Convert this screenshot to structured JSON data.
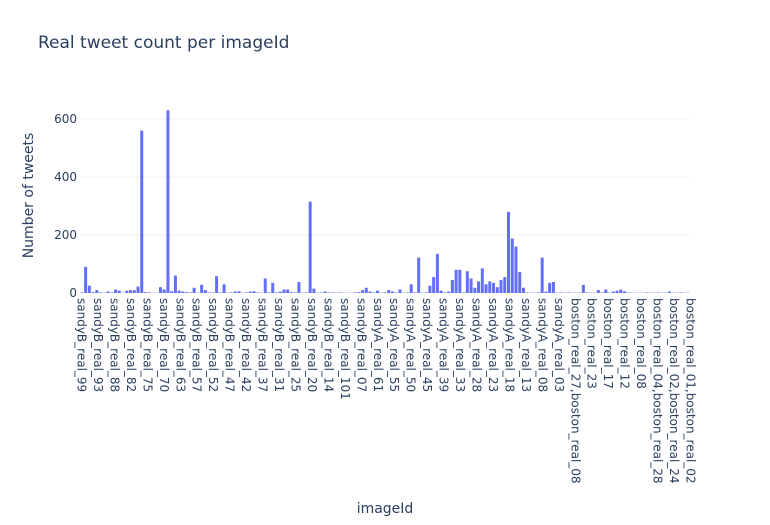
{
  "chart_data": {
    "type": "bar",
    "title": "Real tweet count per imageId",
    "xlabel": "imageId",
    "ylabel": "Number of tweets",
    "ylim": [
      0,
      700
    ],
    "yticks": [
      0,
      200,
      400,
      600
    ],
    "grid": true,
    "color": "#636efa",
    "tick_labels": [
      "sandyB_real_99",
      "sandyB_real_93",
      "sandyB_real_88",
      "sandyB_real_82",
      "sandyB_real_75",
      "sandyB_real_70",
      "sandyB_real_63",
      "sandyB_real_57",
      "sandyB_real_52",
      "sandyB_real_47",
      "sandyB_real_42",
      "sandyB_real_37",
      "sandyB_real_31",
      "sandyB_real_25",
      "sandyB_real_20",
      "sandyB_real_14",
      "sandyB_real_101",
      "sandyB_real_07",
      "sandyA_real_61",
      "sandyA_real_55",
      "sandyA_real_50",
      "sandyA_real_45",
      "sandyA_real_39",
      "sandyA_real_33",
      "sandyA_real_28",
      "sandyA_real_23",
      "sandyA_real_18",
      "sandyA_real_13",
      "sandyA_real_08",
      "sandyA_real_03",
      "boston_real_27,boston_real_08",
      "boston_real_23",
      "boston_real_17",
      "boston_real_12",
      "boston_real_08",
      "boston_real_04,boston_real_28",
      "boston_real_02,boston_real_24",
      "boston_real_01,boston_real_02"
    ],
    "values": [
      2,
      90,
      25,
      3,
      10,
      2,
      1,
      5,
      2,
      12,
      8,
      1,
      8,
      10,
      10,
      22,
      560,
      3,
      2,
      1,
      1,
      20,
      12,
      630,
      6,
      60,
      8,
      5,
      3,
      2,
      18,
      1,
      28,
      10,
      2,
      2,
      58,
      2,
      30,
      1,
      2,
      5,
      6,
      1,
      2,
      5,
      6,
      2,
      1,
      50,
      2,
      35,
      2,
      5,
      12,
      12,
      3,
      2,
      38,
      1,
      2,
      315,
      15,
      1,
      2,
      5,
      2,
      2,
      1,
      2,
      1,
      1,
      1,
      2,
      3,
      10,
      18,
      5,
      2,
      8,
      1,
      2,
      10,
      5,
      2,
      12,
      1,
      2,
      30,
      2,
      122,
      1,
      2,
      25,
      55,
      135,
      8,
      2,
      5,
      45,
      80,
      80,
      2,
      75,
      50,
      18,
      40,
      85,
      30,
      40,
      35,
      20,
      45,
      55,
      280,
      188,
      160,
      72,
      18,
      2,
      1,
      1,
      2,
      122,
      5,
      35,
      38,
      1,
      2,
      1,
      2,
      1,
      1,
      1,
      28,
      2,
      1,
      1,
      10,
      2,
      12,
      1,
      5,
      8,
      12,
      6,
      2,
      1,
      1,
      1,
      1,
      2,
      1,
      1,
      2,
      1,
      1,
      5,
      1,
      1,
      2,
      1,
      1
    ]
  }
}
